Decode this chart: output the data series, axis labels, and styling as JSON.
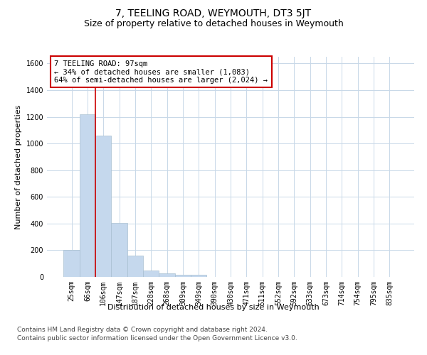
{
  "title": "7, TEELING ROAD, WEYMOUTH, DT3 5JT",
  "subtitle": "Size of property relative to detached houses in Weymouth",
  "xlabel": "Distribution of detached houses by size in Weymouth",
  "ylabel": "Number of detached properties",
  "categories": [
    "25sqm",
    "66sqm",
    "106sqm",
    "147sqm",
    "187sqm",
    "228sqm",
    "268sqm",
    "309sqm",
    "349sqm",
    "390sqm",
    "430sqm",
    "471sqm",
    "511sqm",
    "552sqm",
    "592sqm",
    "633sqm",
    "673sqm",
    "714sqm",
    "754sqm",
    "795sqm",
    "835sqm"
  ],
  "values": [
    200,
    1220,
    1060,
    405,
    160,
    50,
    25,
    15,
    15,
    0,
    0,
    0,
    0,
    0,
    0,
    0,
    0,
    0,
    0,
    0,
    0
  ],
  "bar_color": "#c5d8ed",
  "bar_edge_color": "#a8bfd0",
  "highlight_line_color": "#cc0000",
  "annotation_text": "7 TEELING ROAD: 97sqm\n← 34% of detached houses are smaller (1,083)\n64% of semi-detached houses are larger (2,024) →",
  "annotation_box_color": "#ffffff",
  "annotation_box_edge_color": "#cc0000",
  "ylim": [
    0,
    1650
  ],
  "yticks": [
    0,
    200,
    400,
    600,
    800,
    1000,
    1200,
    1400,
    1600
  ],
  "footnote1": "Contains HM Land Registry data © Crown copyright and database right 2024.",
  "footnote2": "Contains public sector information licensed under the Open Government Licence v3.0.",
  "background_color": "#ffffff",
  "grid_color": "#c8d8e8",
  "title_fontsize": 10,
  "subtitle_fontsize": 9,
  "axis_label_fontsize": 8,
  "ylabel_fontsize": 8,
  "tick_fontsize": 7,
  "annotation_fontsize": 7.5,
  "footnote_fontsize": 6.5
}
